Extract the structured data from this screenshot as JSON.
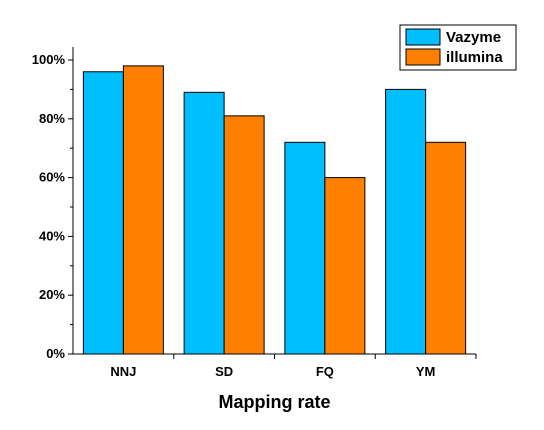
{
  "chart_data": {
    "type": "bar",
    "categories": [
      "NNJ",
      "SD",
      "FQ",
      "YM"
    ],
    "series": [
      {
        "name": "Vazyme",
        "values": [
          96,
          89,
          72,
          90
        ],
        "color": "#00BFFF"
      },
      {
        "name": "illumina",
        "values": [
          98,
          81,
          60,
          72
        ],
        "color": "#FF7F00"
      }
    ],
    "xlabel": "Mapping rate",
    "ylabel": "",
    "ylim": [
      0,
      100
    ],
    "yticks": [
      0,
      20,
      40,
      60,
      80,
      100
    ],
    "ytick_labels": [
      "0%",
      "20%",
      "40%",
      "60%",
      "80%",
      "100%"
    ],
    "grid": false,
    "legend_position": "top-right"
  }
}
